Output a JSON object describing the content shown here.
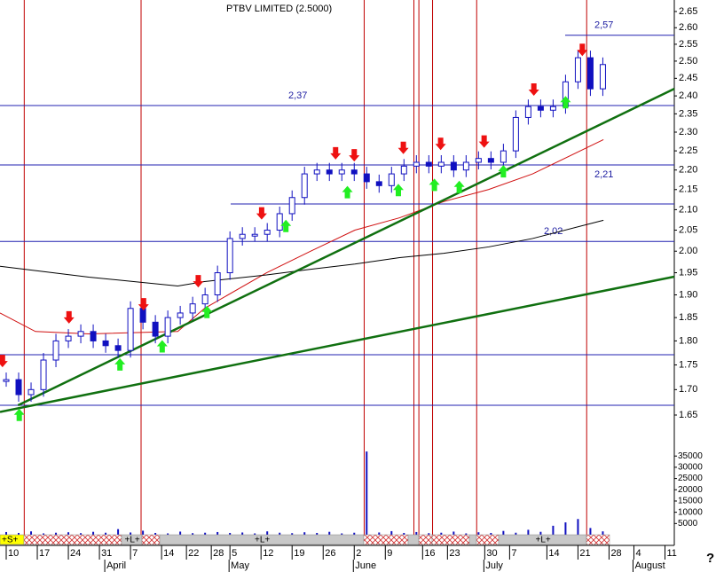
{
  "chart_data": {
    "type": "candlestick",
    "title": "PTBV LIMITED (2.5000)",
    "log_y": true,
    "xlim": [
      -1,
      107.5
    ],
    "ylim": [
      1.638,
      2.686
    ],
    "yticks": [
      2.65,
      {
        "value": 2.6,
        "label": "2.60"
      },
      2.55,
      {
        "value": 2.5,
        "label": "2.50"
      },
      2.45,
      {
        "value": 2.4,
        "label": "2.40"
      },
      2.35,
      {
        "value": 2.3,
        "label": "2.30"
      },
      2.25,
      {
        "value": 2.2,
        "label": "2.20"
      },
      2.15,
      {
        "value": 2.1,
        "label": "2.10"
      },
      2.05,
      {
        "value": 2,
        "label": "2.00"
      },
      1.95,
      {
        "value": 1.9,
        "label": "1.90"
      },
      1.85,
      {
        "value": 1.8,
        "label": "1.80"
      },
      1.75,
      {
        "value": 1.7,
        "label": "1.70"
      },
      1.65
    ],
    "xticks": [
      {
        "value": 0,
        "label": "10"
      },
      {
        "value": 5,
        "label": "17"
      },
      {
        "value": 10,
        "label": "24"
      },
      {
        "value": 15,
        "label": "31"
      },
      {
        "value": 20,
        "label": "7"
      },
      {
        "value": 25,
        "label": "14"
      },
      {
        "value": 29,
        "label": "22"
      },
      {
        "value": 33,
        "label": "28"
      },
      {
        "value": 36,
        "label": "5"
      },
      {
        "value": 41,
        "label": "12"
      },
      {
        "value": 46,
        "label": "19"
      },
      {
        "value": 51,
        "label": "26"
      },
      {
        "value": 56,
        "label": "2"
      },
      {
        "value": 61,
        "label": "9"
      },
      {
        "value": 67,
        "label": "16"
      },
      {
        "value": 71,
        "label": "23"
      },
      {
        "value": 77,
        "label": "30"
      },
      {
        "value": 81,
        "label": "7"
      },
      {
        "value": 87,
        "label": "14"
      },
      {
        "value": 92,
        "label": "21"
      },
      {
        "value": 97,
        "label": "28"
      },
      {
        "value": 101,
        "label": "4"
      },
      {
        "value": 106,
        "label": "11"
      }
    ],
    "months": [
      {
        "value": 17,
        "label": "April"
      },
      {
        "value": 37,
        "label": "May"
      },
      {
        "value": 57,
        "label": "June"
      },
      {
        "value": 78,
        "label": "July"
      },
      {
        "value": 102,
        "label": "August"
      }
    ],
    "x": [
      0,
      2,
      4,
      6,
      8,
      10,
      12,
      14,
      16,
      18,
      20,
      22,
      24,
      26,
      28,
      30,
      32,
      34,
      36,
      38,
      40,
      42,
      44,
      46,
      48,
      50,
      52,
      54,
      56,
      58,
      60,
      62,
      64,
      66,
      68,
      70,
      72,
      74,
      76,
      78,
      80,
      82,
      84,
      86,
      88,
      90,
      92,
      94,
      96
    ],
    "series": [
      {
        "name": "Close",
        "color": "#1010c0",
        "values": [
          1.72,
          1.69,
          1.7,
          1.76,
          1.8,
          1.81,
          1.82,
          1.8,
          1.79,
          1.78,
          1.87,
          1.84,
          1.81,
          1.85,
          1.86,
          1.88,
          1.9,
          1.95,
          2.03,
          2.04,
          2.04,
          2.05,
          2.09,
          2.13,
          2.19,
          2.2,
          2.19,
          2.2,
          2.19,
          2.17,
          2.16,
          2.19,
          2.21,
          2.22,
          2.21,
          2.22,
          2.2,
          2.22,
          2.23,
          2.22,
          2.25,
          2.34,
          2.37,
          2.36,
          2.37,
          2.44,
          2.51,
          2.42,
          2.49
        ]
      },
      {
        "name": "Volume",
        "color": "#1010c0",
        "axis": "y2",
        "values": [
          1200,
          800,
          1500,
          600,
          900,
          1100,
          700,
          1300,
          900,
          2500,
          1000,
          1800,
          800,
          600,
          1400,
          700,
          900,
          1200,
          800,
          1000,
          600,
          1500,
          900,
          700,
          1100,
          800,
          1300,
          600,
          900,
          37000,
          1000,
          1600,
          800,
          1200,
          700,
          900,
          1400,
          600,
          1100,
          800,
          1700,
          900,
          2200,
          1300,
          4000,
          5500,
          7000,
          3000,
          1500
        ]
      }
    ],
    "averages": {
      "x": [
        -1,
        4.7,
        13.3,
        27.6,
        31.9,
        41.9,
        49,
        56.1,
        63.3,
        70.4,
        77.6,
        84.7,
        96.1
      ],
      "series": [
        {
          "color": "#d01010",
          "values": [
            1.86,
            1.82,
            1.815,
            1.82,
            1.87,
            1.95,
            2.0,
            2.05,
            2.08,
            2.12,
            2.15,
            2.19,
            2.28
          ]
        },
        {
          "color": "#000000",
          "values": [
            1.965,
            1.955,
            1.94,
            1.92,
            1.93,
            1.945,
            1.958,
            1.97,
            1.985,
            1.995,
            2.01,
            2.03,
            2.074
          ]
        }
      ]
    },
    "trendlines": [
      {
        "color": "#107010",
        "x": [
          1.9,
          107.5
        ],
        "values": [
          1.669,
          2.42
        ]
      },
      {
        "color": "#107010",
        "x": [
          -1,
          107.5
        ],
        "values": [
          1.656,
          1.941
        ]
      }
    ],
    "hlines": [
      {
        "value": 2.577,
        "label": "2,57"
      },
      {
        "value": 2.373,
        "label": "2,37"
      },
      {
        "value": 2.213,
        "label": "2,21"
      },
      {
        "value": 2.114
      },
      {
        "value": 2.023,
        "label": "2,02"
      },
      {
        "value": 1.771
      },
      {
        "value": 1.669
      }
    ],
    "vlines": [
      2.9,
      21.7,
      57.6,
      65.6,
      66.4,
      68.6,
      75.7,
      93.4
    ],
    "buy_signals": [
      2.1,
      18.3,
      25.1,
      32.3,
      45,
      54.9,
      63.1,
      68.9,
      72.9,
      80,
      90
    ],
    "sell_signals": [
      -0.6,
      10.1,
      22.1,
      30.9,
      41.1,
      53,
      56,
      63.9,
      69.9,
      76.9,
      84.9,
      92.7
    ],
    "y2lim": [
      0,
      48500
    ],
    "y2ticks": [
      5000,
      10000,
      15000,
      20000,
      25000,
      30000,
      35000
    ],
    "band_labels": [
      "+S+",
      "+L+",
      "+L+",
      "+L+"
    ],
    "help": "?"
  }
}
